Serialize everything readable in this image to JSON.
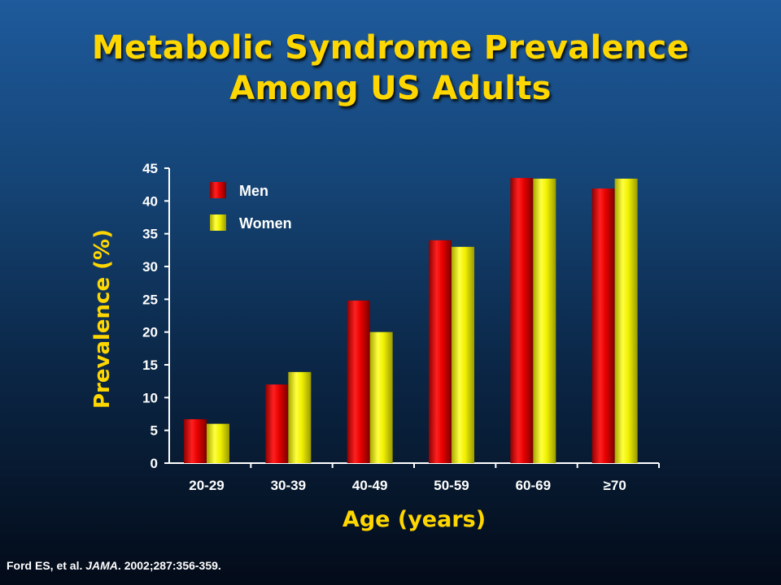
{
  "slide": {
    "title_line1": "Metabolic Syndrome Prevalence",
    "title_line2": "Among US Adults",
    "citation_prefix": "Ford ES, et al.",
    "citation_journal": "JAMA",
    "citation_suffix": ". 2002;287:356-359."
  },
  "colors": {
    "men": "#e60000",
    "women": "#f0f000",
    "title": "#ffd700",
    "axis_label": "#ffd700",
    "ticks": "#ffffff"
  },
  "chart_data": {
    "type": "bar",
    "title": "Metabolic Syndrome Prevalence Among US Adults",
    "xlabel": "Age (years)",
    "ylabel": "Prevalence (%)",
    "ylim": [
      0,
      45
    ],
    "yticks": [
      0,
      5,
      10,
      15,
      20,
      25,
      30,
      35,
      40,
      45
    ],
    "categories": [
      "20-29",
      "30-39",
      "40-49",
      "50-59",
      "60-69",
      "≥70"
    ],
    "series": [
      {
        "name": "Men",
        "values": [
          6.7,
          12.0,
          24.8,
          34.0,
          43.5,
          41.9
        ]
      },
      {
        "name": "Women",
        "values": [
          6.0,
          13.9,
          20.0,
          33.0,
          43.4,
          43.4
        ]
      }
    ],
    "legend": "top-left",
    "grid": false
  }
}
